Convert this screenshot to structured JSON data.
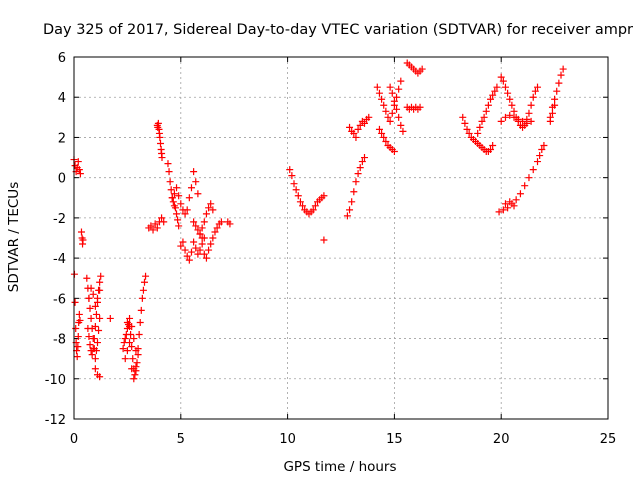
{
  "chart_data": {
    "type": "scatter",
    "title": "Day 325 of 2017, Sidereal Day-to-day VTEC variation (SDTVAR) for receiver ampr",
    "xlabel": "GPS time / hours",
    "ylabel": "SDTVAR / TECUs",
    "xlim": [
      0,
      25
    ],
    "ylim": [
      -12,
      6
    ],
    "xticks": [
      0,
      5,
      10,
      15,
      20,
      25
    ],
    "yticks": [
      -12,
      -10,
      -8,
      -6,
      -4,
      -2,
      0,
      2,
      4,
      6
    ],
    "grid": true,
    "marker": "+",
    "color": "#ff0000",
    "series": [
      {
        "x": [
          0.0,
          0.05,
          0.1,
          0.15,
          0.2,
          0.25,
          0.3
        ],
        "y": [
          0.9,
          0.6,
          0.3,
          0.5,
          0.8,
          0.4,
          0.2
        ]
      },
      {
        "x": [
          0.02,
          0.05,
          0.08,
          0.1,
          0.12,
          0.15,
          0.18,
          0.2,
          0.22,
          0.25,
          0.28
        ],
        "y": [
          -4.8,
          -6.2,
          -7.5,
          -8.2,
          -8.6,
          -8.9,
          -8.4,
          -7.9,
          -7.2,
          -6.8,
          -7.1
        ]
      },
      {
        "x": [
          0.35,
          0.38,
          0.4,
          0.42
        ],
        "y": [
          -2.7,
          -3.0,
          -3.3,
          -3.1
        ]
      },
      {
        "x": [
          0.6,
          0.65,
          0.7,
          0.75,
          0.8,
          0.85,
          0.9,
          0.95,
          1.0,
          1.05,
          1.1,
          1.15,
          1.2
        ],
        "y": [
          -5.0,
          -5.5,
          -6.0,
          -6.5,
          -7.0,
          -7.5,
          -8.0,
          -8.5,
          -9.0,
          -8.6,
          -8.2,
          -7.6,
          -7.0
        ]
      },
      {
        "x": [
          0.65,
          0.7,
          0.75,
          0.8,
          0.85,
          0.9,
          0.95,
          1.0,
          1.05,
          1.1,
          1.15,
          1.2,
          1.25
        ],
        "y": [
          -7.5,
          -7.9,
          -8.3,
          -8.6,
          -8.8,
          -8.5,
          -8.0,
          -7.4,
          -6.8,
          -6.2,
          -5.6,
          -5.2,
          -4.9
        ]
      },
      {
        "x": [
          0.7,
          0.8,
          0.9,
          1.0,
          1.1,
          1.2
        ],
        "y": [
          -6.0,
          -5.5,
          -5.8,
          -6.4,
          -6.0,
          -5.6
        ]
      },
      {
        "x": [
          1.0,
          1.1,
          1.2
        ],
        "y": [
          -9.5,
          -9.8,
          -9.9
        ]
      },
      {
        "x": [
          1.7
        ],
        "y": [
          -7.0
        ]
      },
      {
        "x": [
          2.3,
          2.35,
          2.4,
          2.45,
          2.5,
          2.55,
          2.6,
          2.65,
          2.7,
          2.75,
          2.8,
          2.85,
          2.9,
          2.95,
          3.0
        ],
        "y": [
          -8.5,
          -8.2,
          -8.0,
          -7.8,
          -7.5,
          -7.3,
          -7.4,
          -7.8,
          -8.4,
          -9.0,
          -9.5,
          -9.8,
          -9.6,
          -9.2,
          -8.8
        ]
      },
      {
        "x": [
          2.4,
          2.5,
          2.6,
          2.7,
          2.8,
          2.9,
          3.0,
          3.05,
          3.1,
          3.15,
          3.2,
          3.25,
          3.3,
          3.35
        ],
        "y": [
          -9.0,
          -8.6,
          -8.2,
          -9.5,
          -10.0,
          -9.4,
          -8.5,
          -7.8,
          -7.2,
          -6.6,
          -6.0,
          -5.6,
          -5.2,
          -4.9
        ]
      },
      {
        "x": [
          2.5,
          2.6,
          2.7,
          2.8,
          2.9
        ],
        "y": [
          -7.2,
          -7.0,
          -7.4,
          -8.0,
          -8.6
        ]
      },
      {
        "x": [
          3.5,
          3.6,
          3.7,
          3.8,
          3.9,
          4.0,
          4.1,
          4.2
        ],
        "y": [
          -2.5,
          -2.4,
          -2.6,
          -2.3,
          -2.5,
          -2.2,
          -2.0,
          -2.2
        ]
      },
      {
        "x": [
          3.9,
          3.92,
          3.95,
          3.98,
          4.0,
          4.02,
          4.05,
          4.08,
          4.1,
          4.12
        ],
        "y": [
          2.6,
          2.5,
          2.7,
          2.4,
          2.2,
          2.0,
          1.7,
          1.4,
          1.2,
          1.0
        ]
      },
      {
        "x": [
          4.4,
          4.45,
          4.5,
          4.55,
          4.6,
          4.65,
          4.7,
          4.75,
          4.8,
          4.85,
          4.9
        ],
        "y": [
          0.7,
          0.3,
          -0.2,
          -0.6,
          -1.0,
          -1.2,
          -1.4,
          -1.5,
          -1.8,
          -2.1,
          -2.4
        ]
      },
      {
        "x": [
          4.6,
          4.7,
          4.8,
          4.9,
          5.0,
          5.1,
          5.2
        ],
        "y": [
          -1.0,
          -0.8,
          -0.5,
          -0.9,
          -1.3,
          -1.6,
          -1.8
        ]
      },
      {
        "x": [
          5.0,
          5.1,
          5.2,
          5.3,
          5.4,
          5.5,
          5.6,
          5.7,
          5.8,
          5.9,
          6.0,
          6.1
        ],
        "y": [
          -3.4,
          -3.2,
          -3.6,
          -3.9,
          -4.1,
          -3.7,
          -3.2,
          -3.5,
          -3.8,
          -3.6,
          -3.3,
          -3.0
        ]
      },
      {
        "x": [
          5.3,
          5.4,
          5.5,
          5.6,
          5.7,
          5.8
        ],
        "y": [
          -1.6,
          -1.0,
          -0.5,
          0.3,
          -0.2,
          -0.8
        ]
      },
      {
        "x": [
          5.9,
          6.0,
          6.1,
          6.2,
          6.3,
          6.4,
          6.5
        ],
        "y": [
          -2.8,
          -2.5,
          -2.2,
          -1.8,
          -1.5,
          -1.3,
          -1.6
        ]
      },
      {
        "x": [
          6.1,
          6.2,
          6.3,
          6.4,
          6.5,
          6.6,
          6.7,
          6.8,
          6.9
        ],
        "y": [
          -3.8,
          -4.0,
          -3.6,
          -3.3,
          -3.0,
          -2.7,
          -2.5,
          -2.3,
          -2.2
        ]
      },
      {
        "x": [
          5.6,
          5.7,
          5.8,
          5.9,
          6.0
        ],
        "y": [
          -2.2,
          -2.4,
          -2.6,
          -2.8,
          -3.0
        ]
      },
      {
        "x": [
          7.2,
          7.3
        ],
        "y": [
          -2.2,
          -2.3
        ]
      },
      {
        "x": [
          10.1,
          10.2,
          10.3,
          10.4,
          10.5,
          10.6,
          10.7,
          10.8,
          10.9,
          11.0,
          11.1,
          11.2,
          11.3,
          11.4,
          11.5,
          11.6,
          11.7
        ],
        "y": [
          0.4,
          0.1,
          -0.3,
          -0.6,
          -0.9,
          -1.2,
          -1.4,
          -1.6,
          -1.7,
          -1.8,
          -1.7,
          -1.6,
          -1.4,
          -1.2,
          -1.1,
          -1.0,
          -0.9
        ]
      },
      {
        "x": [
          11.7
        ],
        "y": [
          -3.1
        ]
      },
      {
        "x": [
          12.8,
          12.9,
          13.0,
          13.1,
          13.2,
          13.3,
          13.4,
          13.5,
          13.6
        ],
        "y": [
          -1.9,
          -1.6,
          -1.2,
          -0.7,
          -0.2,
          0.2,
          0.5,
          0.8,
          1.0
        ]
      },
      {
        "x": [
          12.9,
          13.0,
          13.1,
          13.2,
          13.3,
          13.4,
          13.5,
          13.6,
          13.7,
          13.8
        ],
        "y": [
          2.5,
          2.3,
          2.2,
          2.0,
          2.4,
          2.6,
          2.8,
          2.7,
          2.9,
          3.0
        ]
      },
      {
        "x": [
          14.2,
          14.3,
          14.4,
          14.5,
          14.6,
          14.7,
          14.8,
          14.9,
          15.0,
          15.1,
          15.2
        ],
        "y": [
          4.5,
          4.2,
          3.9,
          3.6,
          3.3,
          3.0,
          2.8,
          3.2,
          3.6,
          4.0,
          4.4
        ]
      },
      {
        "x": [
          14.3,
          14.4,
          14.5,
          14.6,
          14.7,
          14.8,
          14.9,
          15.0
        ],
        "y": [
          2.4,
          2.2,
          2.0,
          1.8,
          1.6,
          1.5,
          1.4,
          1.3
        ]
      },
      {
        "x": [
          14.8,
          14.9,
          15.0,
          15.1,
          15.2,
          15.3,
          15.4
        ],
        "y": [
          4.5,
          4.2,
          3.8,
          3.4,
          3.0,
          2.6,
          2.3
        ]
      },
      {
        "x": [
          15.3
        ],
        "y": [
          4.8
        ]
      },
      {
        "x": [
          15.6,
          15.7,
          15.8,
          15.9,
          16.0,
          16.1,
          16.2,
          16.3
        ],
        "y": [
          5.7,
          5.6,
          5.5,
          5.4,
          5.3,
          5.2,
          5.3,
          5.4
        ]
      },
      {
        "x": [
          15.6,
          15.7,
          15.8,
          15.9,
          16.0,
          16.1,
          16.2
        ],
        "y": [
          3.5,
          3.4,
          3.5,
          3.4,
          3.5,
          3.4,
          3.5
        ]
      },
      {
        "x": [
          18.2,
          18.3,
          18.4,
          18.5,
          18.6,
          18.7,
          18.8,
          18.9,
          19.0,
          19.1,
          19.2,
          19.3,
          19.4,
          19.5,
          19.6
        ],
        "y": [
          3.0,
          2.7,
          2.4,
          2.2,
          2.0,
          1.9,
          1.8,
          1.7,
          1.6,
          1.5,
          1.4,
          1.3,
          1.3,
          1.4,
          1.6
        ]
      },
      {
        "x": [
          18.9,
          19.0,
          19.1,
          19.2,
          19.3,
          19.4,
          19.5,
          19.6,
          19.7,
          19.8
        ],
        "y": [
          2.2,
          2.5,
          2.8,
          3.0,
          3.3,
          3.6,
          3.9,
          4.1,
          4.3,
          4.5
        ]
      },
      {
        "x": [
          20.0,
          20.1,
          20.2,
          20.3,
          20.4,
          20.5,
          20.6,
          20.7,
          20.8,
          20.9,
          21.0,
          21.1,
          21.2,
          21.3,
          21.4,
          21.5,
          21.6,
          21.7
        ],
        "y": [
          5.0,
          4.8,
          4.5,
          4.2,
          3.9,
          3.6,
          3.3,
          3.0,
          2.8,
          2.6,
          2.5,
          2.6,
          2.9,
          3.2,
          3.6,
          4.0,
          4.3,
          4.5
        ]
      },
      {
        "x": [
          20.0,
          20.2,
          20.4,
          20.6,
          20.8,
          21.0,
          21.2,
          21.4
        ],
        "y": [
          2.8,
          3.0,
          3.1,
          3.0,
          2.9,
          2.8,
          2.7,
          2.8
        ]
      },
      {
        "x": [
          19.9,
          20.1,
          20.3,
          20.5,
          20.7,
          20.9,
          21.1,
          21.3,
          21.5,
          21.7,
          21.8,
          21.9,
          22.0
        ],
        "y": [
          -1.7,
          -1.6,
          -1.5,
          -1.3,
          -1.1,
          -0.8,
          -0.4,
          0.0,
          0.4,
          0.8,
          1.1,
          1.4,
          1.6
        ]
      },
      {
        "x": [
          20.2,
          20.4,
          20.6
        ],
        "y": [
          -1.3,
          -1.2,
          -1.4
        ]
      },
      {
        "x": [
          22.3,
          22.4,
          22.5,
          22.6,
          22.7,
          22.8,
          22.9
        ],
        "y": [
          3.0,
          3.5,
          3.9,
          4.3,
          4.7,
          5.1,
          5.4
        ]
      },
      {
        "x": [
          22.3,
          22.4,
          22.5
        ],
        "y": [
          2.8,
          3.2,
          3.6
        ]
      }
    ]
  }
}
